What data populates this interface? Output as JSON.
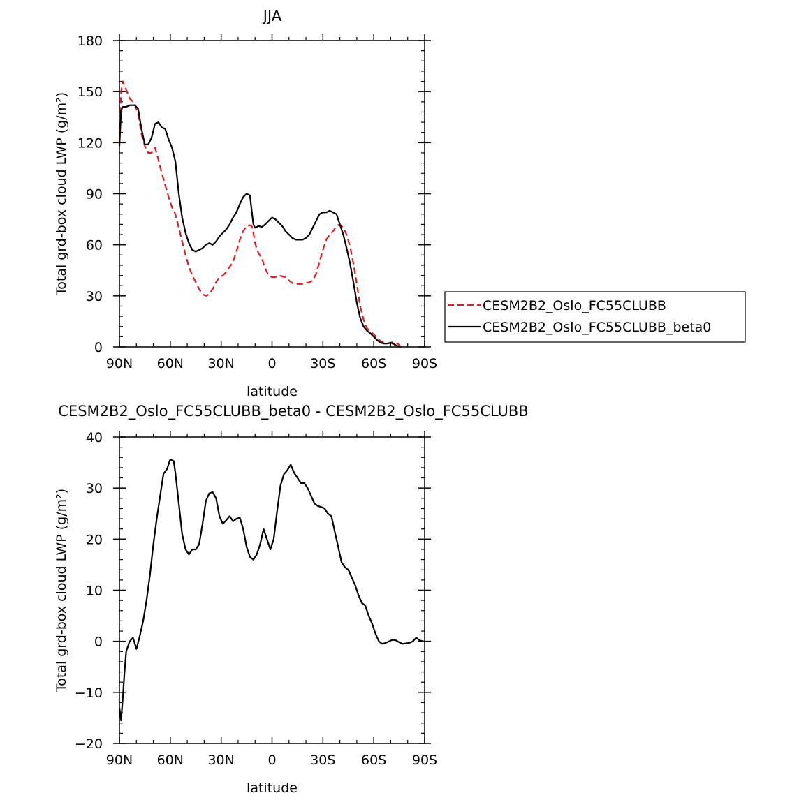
{
  "chart_data": [
    {
      "type": "line",
      "title": "JJA",
      "xlabel": "latitude",
      "ylabel": "Total grd-box cloud LWP (g/m²)",
      "xlim": [
        90,
        -90
      ],
      "ylim": [
        0,
        180
      ],
      "x_ticks": [
        {
          "value": 90,
          "label": "90N"
        },
        {
          "value": 60,
          "label": "60N"
        },
        {
          "value": 30,
          "label": "30N"
        },
        {
          "value": 0,
          "label": "0"
        },
        {
          "value": -30,
          "label": "30S"
        },
        {
          "value": -60,
          "label": "60S"
        },
        {
          "value": -90,
          "label": "90S"
        }
      ],
      "y_ticks": [
        0,
        30,
        60,
        90,
        120,
        150,
        180
      ],
      "legend_position": "right",
      "series": [
        {
          "name": "CESM2B2_Oslo_FC55CLUBB",
          "color": "#e41a1c",
          "style": "dashed",
          "points": [
            [
              90,
              120
            ],
            [
              89,
              150
            ],
            [
              88,
              156
            ],
            [
              86,
              151
            ],
            [
              84,
              146
            ],
            [
              81,
              143
            ],
            [
              79,
              137
            ],
            [
              77,
              125
            ],
            [
              75,
              118
            ],
            [
              73,
              114
            ],
            [
              71,
              114
            ],
            [
              69,
              117
            ],
            [
              67,
              110
            ],
            [
              65,
              102
            ],
            [
              63,
              95
            ],
            [
              61,
              88
            ],
            [
              59,
              82
            ],
            [
              57,
              78
            ],
            [
              55,
              70
            ],
            [
              53,
              62
            ],
            [
              51,
              54
            ],
            [
              49,
              47
            ],
            [
              47,
              42
            ],
            [
              45,
              38
            ],
            [
              43,
              34
            ],
            [
              41,
              31
            ],
            [
              39,
              30
            ],
            [
              37,
              31
            ],
            [
              35,
              34
            ],
            [
              33,
              38
            ],
            [
              31,
              41
            ],
            [
              29,
              42
            ],
            [
              27,
              44
            ],
            [
              25,
              47
            ],
            [
              23,
              50
            ],
            [
              21,
              56
            ],
            [
              19,
              63
            ],
            [
              17,
              68
            ],
            [
              15,
              71
            ],
            [
              13,
              71.5
            ],
            [
              12,
              71
            ],
            [
              11,
              67
            ],
            [
              10,
              61
            ],
            [
              8,
              55
            ],
            [
              6,
              52
            ],
            [
              4,
              46
            ],
            [
              2,
              42
            ],
            [
              0,
              41
            ],
            [
              -2,
              41
            ],
            [
              -4,
              42
            ],
            [
              -6,
              41.5
            ],
            [
              -8,
              41
            ],
            [
              -10,
              39
            ],
            [
              -12,
              37.5
            ],
            [
              -14,
              37
            ],
            [
              -16,
              37
            ],
            [
              -18,
              37
            ],
            [
              -20,
              37.5
            ],
            [
              -22,
              38
            ],
            [
              -24,
              39
            ],
            [
              -26,
              43
            ],
            [
              -28,
              50
            ],
            [
              -30,
              57
            ],
            [
              -32,
              63
            ],
            [
              -34,
              66
            ],
            [
              -36,
              68
            ],
            [
              -38,
              71
            ],
            [
              -40,
              72
            ],
            [
              -42,
              70
            ],
            [
              -44,
              66
            ],
            [
              -46,
              59
            ],
            [
              -48,
              49
            ],
            [
              -50,
              37
            ],
            [
              -52,
              24
            ],
            [
              -54,
              16
            ],
            [
              -56,
              11
            ],
            [
              -58,
              9
            ],
            [
              -60,
              7.5
            ],
            [
              -62,
              5
            ],
            [
              -64,
              3.5
            ],
            [
              -66,
              2.5
            ],
            [
              -68,
              2
            ],
            [
              -70,
              2.5
            ],
            [
              -72,
              3
            ],
            [
              -74,
              2
            ],
            [
              -76,
              0
            ]
          ]
        },
        {
          "name": "CESM2B2_Oslo_FC55CLUBB_beta0",
          "color": "#000000",
          "style": "solid",
          "points": [
            [
              90,
              118
            ],
            [
              89,
              139
            ],
            [
              88,
              141
            ],
            [
              86,
              141
            ],
            [
              84,
              142
            ],
            [
              81,
              142
            ],
            [
              79,
              140
            ],
            [
              77,
              128
            ],
            [
              75,
              119
            ],
            [
              73,
              119
            ],
            [
              71,
              123
            ],
            [
              69,
              131
            ],
            [
              67,
              132
            ],
            [
              65,
              129
            ],
            [
              63,
              128
            ],
            [
              61,
              122
            ],
            [
              59,
              117
            ],
            [
              57,
              109
            ],
            [
              55,
              90
            ],
            [
              53,
              76
            ],
            [
              51,
              67
            ],
            [
              49,
              61
            ],
            [
              47,
              57
            ],
            [
              45,
              56
            ],
            [
              43,
              57
            ],
            [
              41,
              58
            ],
            [
              39,
              60
            ],
            [
              37,
              61
            ],
            [
              35,
              60
            ],
            [
              33,
              62
            ],
            [
              31,
              65
            ],
            [
              29,
              67
            ],
            [
              27,
              69
            ],
            [
              25,
              72
            ],
            [
              23,
              76
            ],
            [
              21,
              79
            ],
            [
              19,
              84
            ],
            [
              17,
              88
            ],
            [
              15,
              90
            ],
            [
              13,
              89
            ],
            [
              12,
              80
            ],
            [
              11,
              72
            ],
            [
              10,
              70
            ],
            [
              8,
              71
            ],
            [
              6,
              70.5
            ],
            [
              4,
              72
            ],
            [
              2,
              74
            ],
            [
              0,
              76
            ],
            [
              -2,
              75
            ],
            [
              -4,
              73
            ],
            [
              -6,
              71
            ],
            [
              -8,
              68
            ],
            [
              -10,
              66
            ],
            [
              -12,
              64
            ],
            [
              -14,
              63
            ],
            [
              -16,
              63
            ],
            [
              -18,
              63
            ],
            [
              -20,
              64
            ],
            [
              -22,
              66
            ],
            [
              -24,
              70
            ],
            [
              -26,
              74
            ],
            [
              -28,
              78
            ],
            [
              -30,
              79
            ],
            [
              -32,
              79
            ],
            [
              -34,
              80
            ],
            [
              -36,
              79
            ],
            [
              -38,
              78
            ],
            [
              -40,
              72
            ],
            [
              -42,
              66
            ],
            [
              -44,
              58
            ],
            [
              -46,
              49
            ],
            [
              -48,
              38
            ],
            [
              -50,
              26
            ],
            [
              -52,
              17
            ],
            [
              -54,
              12
            ],
            [
              -56,
              9.5
            ],
            [
              -58,
              8
            ],
            [
              -60,
              6
            ],
            [
              -62,
              4
            ],
            [
              -64,
              2.5
            ],
            [
              -66,
              2
            ],
            [
              -68,
              2
            ],
            [
              -70,
              2.5
            ],
            [
              -72,
              1.5
            ],
            [
              -74,
              0.5
            ],
            [
              -76,
              0
            ]
          ]
        }
      ]
    },
    {
      "type": "line",
      "title": "CESM2B2_Oslo_FC55CLUBB_beta0 - CESM2B2_Oslo_FC55CLUBB",
      "xlabel": "latitude",
      "ylabel": "Total grd-box cloud LWP (g/m²)",
      "xlim": [
        90,
        -90
      ],
      "ylim": [
        -20,
        40
      ],
      "x_ticks": [
        {
          "value": 90,
          "label": "90N"
        },
        {
          "value": 60,
          "label": "60N"
        },
        {
          "value": 30,
          "label": "30N"
        },
        {
          "value": 0,
          "label": "0"
        },
        {
          "value": -30,
          "label": "30S"
        },
        {
          "value": -60,
          "label": "60S"
        },
        {
          "value": -90,
          "label": "90S"
        }
      ],
      "y_ticks": [
        -20,
        -10,
        0,
        10,
        20,
        30,
        40
      ],
      "series": [
        {
          "color": "#000000",
          "style": "solid",
          "points": [
            [
              90,
              -13
            ],
            [
              89,
              -15.5
            ],
            [
              88,
              -11
            ],
            [
              87,
              -6
            ],
            [
              86,
              -2
            ],
            [
              84,
              0
            ],
            [
              82,
              0.7
            ],
            [
              80,
              -1.5
            ],
            [
              78,
              1
            ],
            [
              76,
              4
            ],
            [
              74,
              8
            ],
            [
              72,
              13
            ],
            [
              70,
              19
            ],
            [
              68,
              24
            ],
            [
              66,
              28.5
            ],
            [
              64,
              32.8
            ],
            [
              62,
              33.7
            ],
            [
              60,
              35.6
            ],
            [
              58,
              35.3
            ],
            [
              57,
              33
            ],
            [
              55,
              27
            ],
            [
              53,
              21
            ],
            [
              51,
              18
            ],
            [
              49,
              17
            ],
            [
              47,
              18
            ],
            [
              45,
              18
            ],
            [
              43,
              19
            ],
            [
              41,
              23
            ],
            [
              39,
              27.5
            ],
            [
              37,
              29
            ],
            [
              35,
              29.2
            ],
            [
              33,
              28
            ],
            [
              31,
              24.5
            ],
            [
              29,
              23
            ],
            [
              27,
              23.7
            ],
            [
              25,
              24.5
            ],
            [
              23,
              23.5
            ],
            [
              21,
              24
            ],
            [
              19,
              24.2
            ],
            [
              17,
              22
            ],
            [
              15,
              18.5
            ],
            [
              13,
              16.5
            ],
            [
              11,
              16
            ],
            [
              9,
              17
            ],
            [
              7,
              19
            ],
            [
              5,
              22
            ],
            [
              3,
              20
            ],
            [
              1,
              18
            ],
            [
              -1,
              20
            ],
            [
              -3,
              25.5
            ],
            [
              -5,
              30.5
            ],
            [
              -7,
              32.7
            ],
            [
              -9,
              33.5
            ],
            [
              -11,
              34.6
            ],
            [
              -13,
              33
            ],
            [
              -15,
              32
            ],
            [
              -17,
              31
            ],
            [
              -19,
              31
            ],
            [
              -21,
              30
            ],
            [
              -23,
              28.5
            ],
            [
              -25,
              27
            ],
            [
              -27,
              26.5
            ],
            [
              -29,
              26.3
            ],
            [
              -31,
              26
            ],
            [
              -33,
              25
            ],
            [
              -35,
              24.5
            ],
            [
              -37,
              21.5
            ],
            [
              -39,
              18.5
            ],
            [
              -41,
              15.5
            ],
            [
              -43,
              14.5
            ],
            [
              -45,
              14
            ],
            [
              -47,
              12.5
            ],
            [
              -49,
              11
            ],
            [
              -51,
              9
            ],
            [
              -53,
              7.5
            ],
            [
              -55,
              7
            ],
            [
              -57,
              5
            ],
            [
              -59,
              3.5
            ],
            [
              -61,
              1.5
            ],
            [
              -63,
              0
            ],
            [
              -65,
              -0.5
            ],
            [
              -67,
              -0.3
            ],
            [
              -69,
              0
            ],
            [
              -71,
              0.3
            ],
            [
              -73,
              0.2
            ],
            [
              -75,
              -0.2
            ],
            [
              -77,
              -0.5
            ],
            [
              -79,
              -0.4
            ],
            [
              -81,
              -0.3
            ],
            [
              -83,
              0
            ],
            [
              -85,
              0.7
            ],
            [
              -87,
              0.2
            ],
            [
              -89,
              0
            ],
            [
              -90,
              0
            ]
          ]
        }
      ]
    }
  ]
}
